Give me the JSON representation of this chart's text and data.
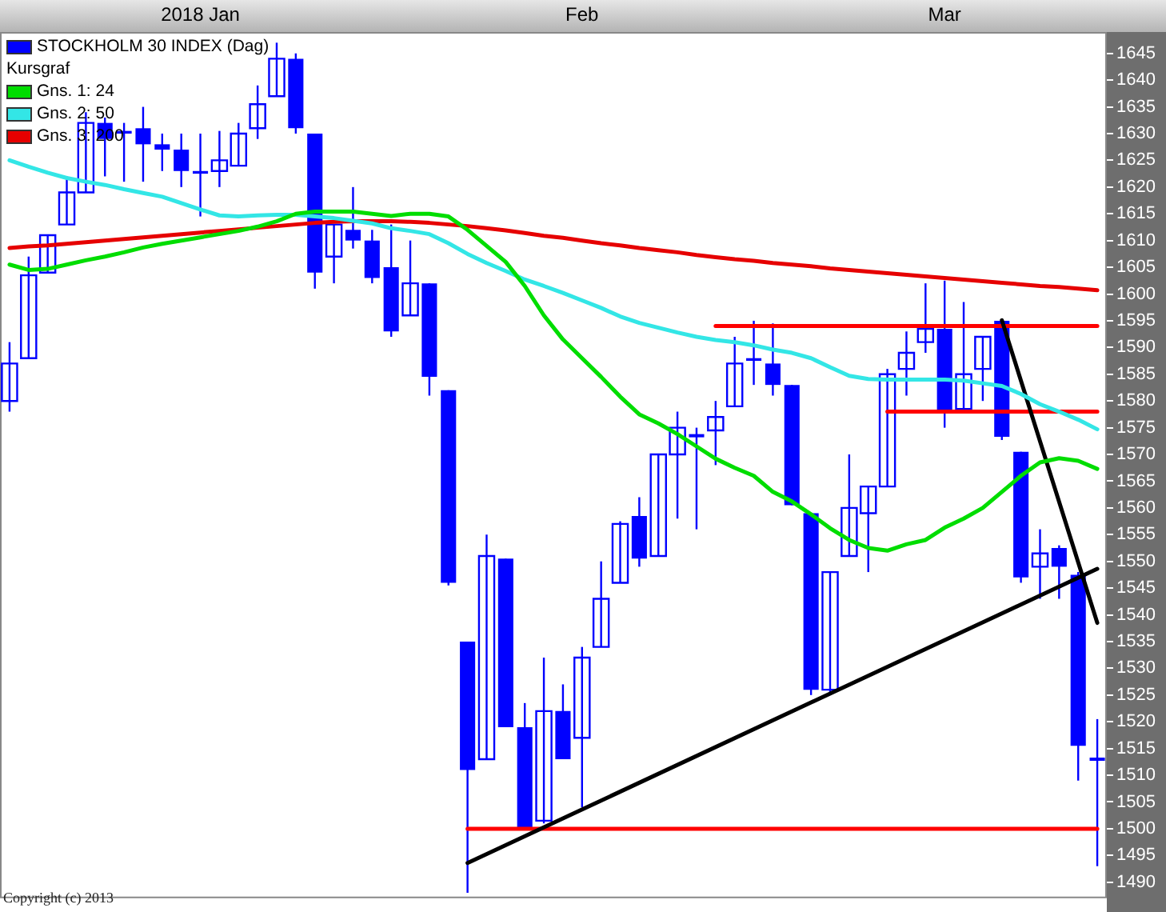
{
  "chart_data": {
    "type": "candlestick",
    "categories": [
      null,
      null,
      null,
      null,
      null,
      null,
      null,
      null,
      null,
      null,
      "2018 Jan",
      null,
      null,
      null,
      null,
      null,
      null,
      null,
      null,
      null,
      null,
      null,
      null,
      null,
      null,
      null,
      null,
      null,
      null,
      null,
      "Feb",
      null,
      null,
      null,
      null,
      null,
      null,
      null,
      null,
      null,
      null,
      null,
      null,
      null,
      null,
      null,
      null,
      null,
      null,
      "Mar",
      null,
      null,
      null,
      null,
      null,
      null,
      null,
      null
    ],
    "ylim": [
      1487,
      1649
    ],
    "yticks": [
      1490,
      1495,
      1500,
      1505,
      1510,
      1515,
      1520,
      1525,
      1530,
      1535,
      1540,
      1545,
      1550,
      1555,
      1560,
      1565,
      1570,
      1575,
      1580,
      1585,
      1590,
      1595,
      1600,
      1605,
      1610,
      1615,
      1620,
      1625,
      1630,
      1635,
      1640,
      1645
    ],
    "legend": "top left",
    "legend_title": "Kursgraf",
    "grid": false,
    "annotations": [
      "Copyright (c) 2013"
    ],
    "series": [
      {
        "name": "STOCKHOLM 30 INDEX (Dag)",
        "color": "#0000ff",
        "ohlc": [
          [
            1580,
            1591,
            1578,
            1587
          ],
          [
            1588,
            1607,
            1588,
            1603.5
          ],
          [
            1604,
            1611,
            1604,
            1611
          ],
          [
            1613,
            1622,
            1613,
            1619
          ],
          [
            1619,
            1634,
            1619,
            1632
          ],
          [
            1632,
            1633,
            1622,
            1629
          ],
          [
            1630.5,
            1632,
            1621,
            1630
          ],
          [
            1631,
            1635,
            1621,
            1628
          ],
          [
            1628,
            1630,
            1623,
            1627
          ],
          [
            1627,
            1630,
            1620,
            1623
          ],
          [
            1623,
            1630,
            1614.5,
            1622.5
          ],
          [
            1623,
            1630.5,
            1620,
            1625
          ],
          [
            1624,
            1632,
            1624,
            1630
          ],
          [
            1631,
            1639,
            1629,
            1635.5
          ],
          [
            1637,
            1647,
            1637,
            1644
          ],
          [
            1644,
            1645,
            1630,
            1631
          ],
          [
            1630,
            1630,
            1601,
            1604
          ],
          [
            1607,
            1613,
            1602,
            1613
          ],
          [
            1612,
            1620,
            1608.5,
            1610
          ],
          [
            1610,
            1612,
            1602,
            1603
          ],
          [
            1605,
            1613,
            1592,
            1593
          ],
          [
            1596,
            1610,
            1596,
            1602
          ],
          [
            1602,
            1602,
            1581,
            1584.5
          ],
          [
            1582,
            1582,
            1545.5,
            1546
          ],
          [
            1535,
            1535,
            1488,
            1511
          ],
          [
            1513,
            1555,
            1513,
            1551
          ],
          [
            1550.5,
            1550.5,
            1519,
            1519
          ],
          [
            1519,
            1523.5,
            1500,
            1500
          ],
          [
            1501.5,
            1532,
            1501,
            1522
          ],
          [
            1522,
            1527,
            1513,
            1513
          ],
          [
            1517,
            1534,
            1504,
            1532
          ],
          [
            1534,
            1550,
            1534,
            1543
          ],
          [
            1546,
            1557.5,
            1546,
            1557
          ],
          [
            1558.5,
            1562,
            1549,
            1550.5
          ],
          [
            1551,
            1570,
            1551,
            1570
          ],
          [
            1570,
            1578,
            1558,
            1575
          ],
          [
            1573.7,
            1575,
            1556,
            1573.5
          ],
          [
            1574.5,
            1580,
            1568,
            1577
          ],
          [
            1579,
            1592,
            1579,
            1587
          ],
          [
            1588,
            1595,
            1583,
            1587.5
          ],
          [
            1587,
            1594.5,
            1581,
            1583
          ],
          [
            1583,
            1583,
            1560.5,
            1560.5
          ],
          [
            1559,
            1559,
            1525,
            1526
          ],
          [
            1526,
            1548,
            1525,
            1548
          ],
          [
            1551,
            1570,
            1551,
            1560
          ],
          [
            1559,
            1564,
            1548,
            1564
          ],
          [
            1564,
            1586,
            1564,
            1585
          ],
          [
            1586,
            1593,
            1581,
            1589
          ],
          [
            1591,
            1602,
            1589,
            1593.5
          ],
          [
            1593.5,
            1602.5,
            1575,
            1578
          ],
          [
            1578.5,
            1598.5,
            1578.5,
            1585
          ],
          [
            1586,
            1592,
            1580,
            1592
          ],
          [
            1595,
            1595,
            1572.7,
            1573.3
          ],
          [
            1570.5,
            1570.5,
            1546,
            1547
          ],
          [
            1549,
            1556,
            1543,
            1551.5
          ],
          [
            1552.5,
            1553,
            1543,
            1549
          ],
          [
            1547.5,
            1548,
            1509,
            1515.5
          ],
          [
            1513.2,
            1520.5,
            1493,
            1513
          ]
        ]
      },
      {
        "type": "line",
        "name": "Gns. 1: 24",
        "color": "#00dd00",
        "values": [
          1605.5,
          1604.5,
          1604.7,
          1605.5,
          1606.3,
          1607,
          1607.8,
          1608.7,
          1609.4,
          1610,
          1610.6,
          1611.2,
          1611.8,
          1612.6,
          1613.6,
          1615,
          1615.4,
          1615.4,
          1615.4,
          1615,
          1614.6,
          1615,
          1615,
          1614.5,
          1612,
          1609,
          1606,
          1601.5,
          1596,
          1591.5,
          1588,
          1584.5,
          1580.8,
          1577.5,
          1575.8,
          1573.8,
          1571.5,
          1569.2,
          1567.5,
          1566,
          1563,
          1561.2,
          1558.8,
          1556.2,
          1554,
          1552.5,
          1552,
          1553.2,
          1554,
          1556.3,
          1558,
          1560,
          1563,
          1566,
          1568.5,
          1569.3,
          1568.8,
          1567.3
        ]
      },
      {
        "type": "line",
        "name": "Gns. 2: 50",
        "color": "#33e6e6",
        "values": [
          1625,
          1623.8,
          1622.7,
          1621.7,
          1621,
          1620.4,
          1619.6,
          1618.9,
          1618.2,
          1617,
          1615.8,
          1614.7,
          1614.5,
          1614.7,
          1614.8,
          1614.8,
          1614.5,
          1614.2,
          1613.7,
          1613.2,
          1612.3,
          1611.8,
          1611.2,
          1609.5,
          1607.5,
          1605.8,
          1604.3,
          1602.7,
          1601.5,
          1600.2,
          1598.8,
          1597.4,
          1595.8,
          1594.6,
          1593.7,
          1592.8,
          1592,
          1591.4,
          1591,
          1590.4,
          1589.6,
          1589,
          1588,
          1586.3,
          1584.7,
          1584.1,
          1584,
          1584,
          1584,
          1584,
          1583.8,
          1583.3,
          1582.8,
          1581.3,
          1579.4,
          1578,
          1576.5,
          1574.7
        ]
      },
      {
        "type": "line",
        "name": "Gns. 3: 200",
        "color": "#e60000",
        "values": [
          1608.6,
          1608.9,
          1609.1,
          1609.4,
          1609.7,
          1610,
          1610.3,
          1610.6,
          1610.9,
          1611.2,
          1611.5,
          1611.8,
          1612.1,
          1612.4,
          1612.7,
          1613,
          1613.3,
          1613.5,
          1613.6,
          1613.6,
          1613.6,
          1613.5,
          1613.3,
          1613,
          1612.7,
          1612.3,
          1611.9,
          1611.4,
          1610.9,
          1610.5,
          1610,
          1609.5,
          1609.1,
          1608.6,
          1608.2,
          1607.8,
          1607.3,
          1606.9,
          1606.5,
          1606.2,
          1605.8,
          1605.5,
          1605.2,
          1604.8,
          1604.5,
          1604.2,
          1603.9,
          1603.6,
          1603.3,
          1603,
          1602.7,
          1602.4,
          1602.1,
          1601.8,
          1601.5,
          1601.3,
          1601,
          1600.7
        ]
      },
      {
        "type": "line",
        "color": "#000000",
        "values": [
          null,
          null,
          null,
          null,
          null,
          null,
          null,
          null,
          null,
          null,
          null,
          null,
          null,
          null,
          null,
          null,
          null,
          null,
          null,
          null,
          null,
          null,
          null,
          null,
          1493.6,
          null,
          null,
          null,
          null,
          null,
          null,
          null,
          null,
          null,
          null,
          null,
          null,
          null,
          null,
          null,
          null,
          null,
          null,
          null,
          null,
          null,
          null,
          null,
          null,
          null,
          null,
          null,
          null,
          null,
          null,
          null,
          null,
          1548.6
        ]
      },
      {
        "type": "line",
        "color": "#000000",
        "values": [
          null,
          null,
          null,
          null,
          null,
          null,
          null,
          null,
          null,
          null,
          null,
          null,
          null,
          null,
          null,
          null,
          null,
          null,
          null,
          null,
          null,
          null,
          null,
          null,
          null,
          null,
          null,
          null,
          null,
          null,
          null,
          null,
          null,
          null,
          null,
          null,
          null,
          null,
          null,
          null,
          null,
          null,
          null,
          null,
          null,
          null,
          null,
          null,
          null,
          null,
          null,
          null,
          1595.1,
          null,
          null,
          null,
          null,
          1538.5
        ]
      },
      {
        "type": "line",
        "color": "#ff0000",
        "values": [
          null,
          null,
          null,
          null,
          null,
          null,
          null,
          null,
          null,
          null,
          null,
          null,
          null,
          null,
          null,
          null,
          null,
          null,
          null,
          null,
          null,
          null,
          null,
          null,
          null,
          null,
          null,
          null,
          null,
          null,
          null,
          null,
          null,
          null,
          null,
          null,
          null,
          1594,
          null,
          null,
          null,
          null,
          null,
          null,
          null,
          null,
          null,
          null,
          null,
          null,
          null,
          null,
          null,
          null,
          null,
          null,
          null,
          1594
        ]
      },
      {
        "type": "line",
        "color": "#ff0000",
        "values": [
          null,
          null,
          null,
          null,
          null,
          null,
          null,
          null,
          null,
          null,
          null,
          null,
          null,
          null,
          null,
          null,
          null,
          null,
          null,
          null,
          null,
          null,
          null,
          null,
          null,
          null,
          null,
          null,
          null,
          null,
          null,
          null,
          null,
          null,
          null,
          null,
          null,
          null,
          null,
          null,
          null,
          null,
          null,
          null,
          null,
          null,
          1578,
          null,
          null,
          null,
          null,
          null,
          null,
          null,
          null,
          null,
          null,
          1578
        ]
      },
      {
        "type": "line",
        "color": "#ff0000",
        "values": [
          null,
          null,
          null,
          null,
          null,
          null,
          null,
          null,
          null,
          null,
          null,
          null,
          null,
          null,
          null,
          null,
          null,
          null,
          null,
          null,
          null,
          null,
          null,
          null,
          1500,
          null,
          null,
          null,
          null,
          null,
          null,
          null,
          null,
          null,
          null,
          null,
          null,
          null,
          null,
          null,
          null,
          null,
          null,
          null,
          null,
          null,
          null,
          null,
          null,
          null,
          null,
          null,
          null,
          null,
          null,
          null,
          null,
          1500
        ]
      }
    ]
  }
}
